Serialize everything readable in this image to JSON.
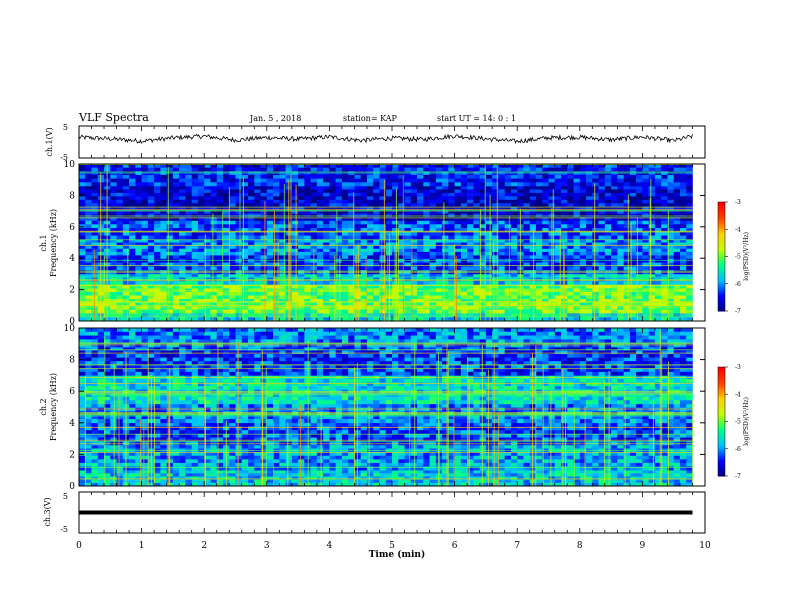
{
  "header": {
    "title": "VLF Spectra",
    "date": "Jan. 5 , 2018",
    "station": "station= KAP",
    "start": "start UT =  14: 0  : 1"
  },
  "chart_data": [
    {
      "type": "line",
      "name": "ch1-waveform",
      "ylabel": "ch.1(V)",
      "ylim": [
        -5,
        5
      ],
      "yticks": [
        "5",
        "-5"
      ],
      "xlim": [
        0,
        10
      ],
      "note_shape": "fluctuating waveform around +1 V, amplitude about 1.5 V, from t=0 to t=9.8 min",
      "x": [
        0,
        0.5,
        1,
        1.5,
        2,
        2.5,
        3,
        3.5,
        4,
        4.5,
        5,
        5.5,
        6,
        6.5,
        7,
        7.5,
        8,
        8.5,
        9,
        9.5,
        9.8
      ],
      "y": [
        1.5,
        1.0,
        0.3,
        1.3,
        1.8,
        0.6,
        1.4,
        0.9,
        1.6,
        0.5,
        1.2,
        0.8,
        1.9,
        1.0,
        0.2,
        1.3,
        1.5,
        0.7,
        1.6,
        0.4,
        1.8
      ]
    },
    {
      "type": "heatmap",
      "name": "ch1-spectrogram",
      "ylabel_1": "ch.1",
      "ylabel_2": "Frequency (kHz)",
      "yticks": [
        "0",
        "2",
        "4",
        "6",
        "8",
        "10"
      ],
      "ylim": [
        0,
        10
      ],
      "xlim": [
        0,
        9.8
      ],
      "colorbar": {
        "label": "log(PSD)(V²/Hz)",
        "ticks": [
          "-3",
          "-4",
          "-5",
          "-6",
          "-7"
        ],
        "range": [
          -7,
          -3
        ]
      },
      "bands": [
        {
          "from": 0,
          "to": 0.5,
          "level": -5.6
        },
        {
          "from": 0.5,
          "to": 2.3,
          "level": -5.0
        },
        {
          "from": 2.3,
          "to": 3.0,
          "level": -5.7
        },
        {
          "from": 3.0,
          "to": 4.2,
          "level": -6.3
        },
        {
          "from": 4.2,
          "to": 5.2,
          "level": -6.0
        },
        {
          "from": 5.2,
          "to": 6.4,
          "level": -6.2
        },
        {
          "from": 6.4,
          "to": 8.6,
          "level": -6.6
        },
        {
          "from": 8.6,
          "to": 10,
          "level": -6.4
        }
      ]
    },
    {
      "type": "heatmap",
      "name": "ch2-spectrogram",
      "ylabel_1": "ch.2",
      "ylabel_2": "Frequency (kHz)",
      "yticks": [
        "0",
        "2",
        "4",
        "6",
        "8",
        "10"
      ],
      "ylim": [
        0,
        10
      ],
      "xlim": [
        0,
        9.8
      ],
      "colorbar": {
        "label": "log(PSD)(V²/Hz)",
        "ticks": [
          "-3",
          "-4",
          "-5",
          "-6",
          "-7"
        ],
        "range": [
          -7,
          -3
        ]
      },
      "bands": [
        {
          "from": 0,
          "to": 1.0,
          "level": -5.7
        },
        {
          "from": 1.0,
          "to": 2.6,
          "level": -5.9
        },
        {
          "from": 2.6,
          "to": 4.0,
          "level": -6.2
        },
        {
          "from": 4.0,
          "to": 5.2,
          "level": -6.0
        },
        {
          "from": 5.2,
          "to": 7.0,
          "level": -5.6
        },
        {
          "from": 7.0,
          "to": 8.8,
          "level": -6.3
        },
        {
          "from": 8.8,
          "to": 10,
          "level": -6.0
        }
      ]
    },
    {
      "type": "line",
      "name": "ch3-waveform",
      "ylabel": "ch.3(V)",
      "ylim": [
        -5,
        5
      ],
      "yticks": [
        "5",
        "-5"
      ],
      "xlim": [
        0,
        10
      ],
      "x": [
        0,
        9.8
      ],
      "y": [
        0,
        0
      ]
    }
  ],
  "xaxis": {
    "label": "Time (min)",
    "ticks": [
      "0",
      "1",
      "2",
      "3",
      "4",
      "5",
      "6",
      "7",
      "8",
      "9",
      "10"
    ]
  },
  "colors": {
    "axis": "#000000",
    "colormap": [
      "#000080",
      "#0000ff",
      "#00c0ff",
      "#00ff80",
      "#c0ff00",
      "#ffd000",
      "#ff4000",
      "#ff0000"
    ]
  }
}
